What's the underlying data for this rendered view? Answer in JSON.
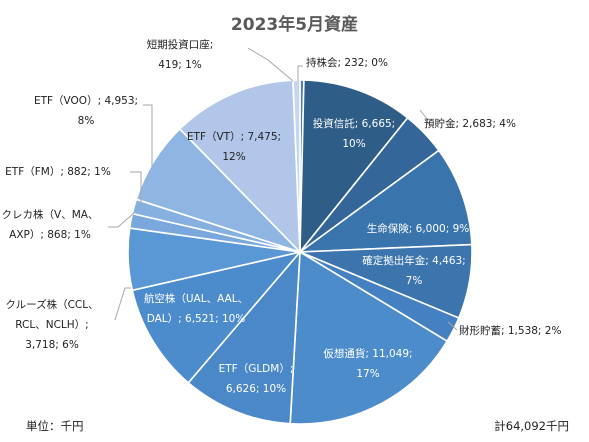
{
  "chart_data": {
    "type": "pie",
    "title": "2023年5月資産",
    "unit_label": "単位：千円",
    "total_label": "計64,092千円",
    "colors": {
      "dark_blue": "#2f5f8a",
      "mid_blue": "#3b75af",
      "light_blue": "#4e8dc9",
      "pale_blue": "#7ea9dc",
      "very_pale_blue": "#a9c3e8"
    },
    "slices": [
      {
        "name": "持株会",
        "value": 232,
        "percent": "0%",
        "label": "持株会; 232; 0%",
        "color": "#4a7ebb"
      },
      {
        "name": "投資信託",
        "value": 6665,
        "percent": "10%",
        "label_lines": [
          "投資信託; 6,665;",
          "10%"
        ],
        "color": "#2e5d87"
      },
      {
        "name": "預貯金",
        "value": 2683,
        "percent": "4%",
        "label": "預貯金; 2,683; 4%",
        "color": "#35669a"
      },
      {
        "name": "生命保険",
        "value": 6000,
        "percent": "9%",
        "label": "生命保険; 6,000; 9%",
        "color": "#3a74ad"
      },
      {
        "name": "確定拠出年金",
        "value": 4463,
        "percent": "7%",
        "label_lines": [
          "確定拠出年金; 4,463;",
          "7%"
        ],
        "color": "#3c75ae"
      },
      {
        "name": "財形貯蓄",
        "value": 1538,
        "percent": "2%",
        "label": "財形貯蓄; 1,538; 2%",
        "color": "#4580c2"
      },
      {
        "name": "仮想通貨",
        "value": 11049,
        "percent": "17%",
        "label_lines": [
          "仮想通貨; 11,049;",
          "17%"
        ],
        "color": "#4d8ccb"
      },
      {
        "name": "ETF（GLDM）",
        "value": 6626,
        "percent": "10%",
        "label_lines": [
          "ETF（GLDM）;",
          "6,626; 10%"
        ],
        "color": "#4a88c8"
      },
      {
        "name": "航空株（UAL、AAL、DAL）",
        "value": 6521,
        "percent": "10%",
        "label_lines": [
          "航空株（UAL、AAL、",
          "DAL）; 6,521; 10%"
        ],
        "color": "#4d8ccc"
      },
      {
        "name": "クルーズ株（CCL、RCL、NCLH）",
        "value": 3718,
        "percent": "6%",
        "label_lines": [
          "クルーズ株（CCL、",
          "RCL、NCLH）;",
          "3,718; 6%"
        ],
        "color": "#5a98d5"
      },
      {
        "name": "クレカ株（V、MA、AXP）",
        "value": 868,
        "percent": "1%",
        "label_lines": [
          "クレカ株（V、MA、",
          "AXP）; 868; 1%"
        ],
        "color": "#7aa8dc"
      },
      {
        "name": "ETF（FM）",
        "value": 882,
        "percent": "1%",
        "label": "ETF（FM）; 882; 1%",
        "color": "#86b0e0"
      },
      {
        "name": "ETF（VOO）",
        "value": 4953,
        "percent": "8%",
        "label_lines": [
          "ETF（VOO）; 4,953;",
          "8%"
        ],
        "color": "#8fb5e2"
      },
      {
        "name": "ETF（VT）",
        "value": 7475,
        "percent": "12%",
        "label_lines": [
          "ETF（VT）; 7,475;",
          "12%"
        ],
        "color": "#b1c6e8"
      },
      {
        "name": "短期投資口座",
        "value": 419,
        "percent": "1%",
        "label_lines": [
          "短期投資口座;",
          "419; 1%"
        ],
        "color": "#c7d6ee"
      }
    ]
  }
}
